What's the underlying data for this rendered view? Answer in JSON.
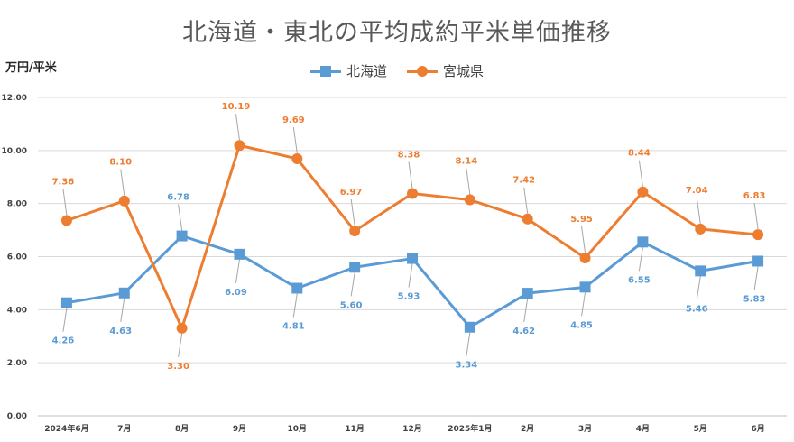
{
  "chart_data": {
    "type": "line",
    "title": "北海道・東北の平均成約平米単価推移",
    "ylabel": "万円/平米",
    "xlabel": "",
    "categories": [
      "2024年6月",
      "7月",
      "8月",
      "9月",
      "10月",
      "11月",
      "12月",
      "2025年1月",
      "2月",
      "3月",
      "4月",
      "5月",
      "6月"
    ],
    "ylim": [
      0,
      12
    ],
    "yticks": [
      "0.00",
      "2.00",
      "4.00",
      "6.00",
      "8.00",
      "10.00",
      "12.00"
    ],
    "grid": true,
    "legend_position": "top",
    "series": [
      {
        "name": "北海道",
        "color": "#5b9bd5",
        "marker": "square",
        "values": [
          4.26,
          4.63,
          6.78,
          6.09,
          4.81,
          5.6,
          5.93,
          3.34,
          4.62,
          4.85,
          6.55,
          5.46,
          5.83
        ],
        "labels": [
          "4.26",
          "4.63",
          "6.78",
          "6.09",
          "4.81",
          "5.60",
          "5.93",
          "3.34",
          "4.62",
          "4.85",
          "6.55",
          "5.46",
          "5.83"
        ],
        "label_side": [
          "below",
          "below",
          "above",
          "below",
          "below",
          "below",
          "below",
          "below",
          "below",
          "below",
          "below",
          "below",
          "below"
        ]
      },
      {
        "name": "宮城県",
        "color": "#ed7d31",
        "marker": "circle",
        "values": [
          7.36,
          8.1,
          3.3,
          10.19,
          9.69,
          6.97,
          8.38,
          8.14,
          7.42,
          5.95,
          8.44,
          7.04,
          6.83
        ],
        "labels": [
          "7.36",
          "8.10",
          "3.30",
          "10.19",
          "9.69",
          "6.97",
          "8.38",
          "8.14",
          "7.42",
          "5.95",
          "8.44",
          "7.04",
          "6.83"
        ],
        "label_side": [
          "above",
          "above",
          "below",
          "above",
          "above",
          "above",
          "above",
          "above",
          "above",
          "above",
          "above",
          "above",
          "above"
        ]
      }
    ]
  }
}
